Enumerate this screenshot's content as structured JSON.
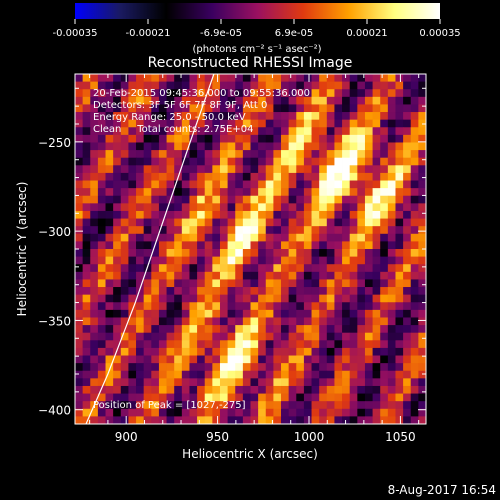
{
  "colorbar": {
    "ticks": [
      "-0.00035",
      "-0.00021",
      "-6.9e-05",
      "6.9e-05",
      "0.00021",
      "0.00035"
    ],
    "units": "(photons cm⁻² s⁻¹ asec⁻²)",
    "colors": [
      "#0000ff",
      "#1a1a60",
      "#000000",
      "#3a0060",
      "#9a1060",
      "#e03a10",
      "#ffa000",
      "#ffff80",
      "#ffffff"
    ]
  },
  "annotations": {
    "time_range": "20-Feb-2015 09:45:36.000 to 09:55:36.000",
    "detectors": "Detectors: 3F 5F 6F 7F 8F 9F, Att 0",
    "energy": "Energy Range: 25.0 - 50.0 keV",
    "clean": "Clean     Total counts: 2.75E+04",
    "peak": "Position of Peak = [1027,-275]"
  },
  "footer": {
    "date": "8-Aug-2017 16:54"
  },
  "chart_data": {
    "type": "heatmap",
    "title": "Reconstructed RHESSI Image",
    "xlabel": "Heliocentric X (arcsec)",
    "ylabel": "Heliocentric Y (arcsec)",
    "xlim": [
      872,
      1064
    ],
    "ylim": [
      -408,
      -212
    ],
    "xticks": [
      900,
      950,
      1000,
      1050
    ],
    "yticks": [
      -250,
      -300,
      -350,
      -400
    ],
    "value_range": [
      -0.00035,
      0.00035
    ],
    "peak": [
      1027,
      -275
    ],
    "limb_curve": [
      [
        878,
        -408
      ],
      [
        890,
        -380
      ],
      [
        905,
        -340
      ],
      [
        920,
        -295
      ],
      [
        935,
        -250
      ],
      [
        948,
        -212
      ]
    ]
  }
}
